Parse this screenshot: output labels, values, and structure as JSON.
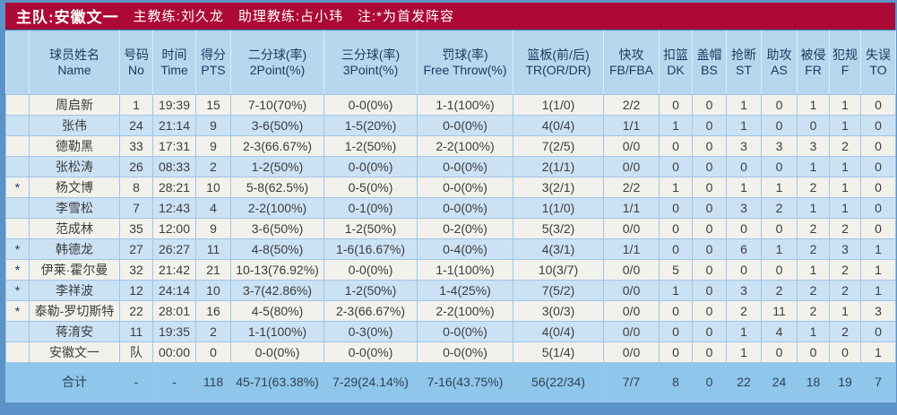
{
  "top_bar": {
    "team_label": "主队:安徽文一",
    "coach_label": "主教练:刘久龙",
    "assistant_label": "助理教练:占小玮",
    "note_label": "注:*为首发阵容"
  },
  "colors": {
    "top_bar_bg": "#ac0936",
    "header_bg": "#b7d7ee",
    "header_text": "#1c3c61",
    "row_light_bg": "#f3f1ec",
    "row_blue_bg": "#cbe2f5",
    "total_row_bg": "#8ec6ec",
    "outer_frame_bg": "#5b93c8",
    "data_text": "#3d3d3d"
  },
  "table": {
    "columns": [
      {
        "key": "star",
        "zh": "",
        "en": ""
      },
      {
        "key": "name",
        "zh": "球员姓名",
        "en": "Name"
      },
      {
        "key": "no",
        "zh": "号码",
        "en": "No"
      },
      {
        "key": "time",
        "zh": "时间",
        "en": "Time"
      },
      {
        "key": "pts",
        "zh": "得分",
        "en": "PTS"
      },
      {
        "key": "p2",
        "zh": "二分球(率)",
        "en": "2Point(%)"
      },
      {
        "key": "p3",
        "zh": "三分球(率)",
        "en": "3Point(%)"
      },
      {
        "key": "ft",
        "zh": "罚球(率)",
        "en": "Free Throw(%)"
      },
      {
        "key": "tr",
        "zh": "篮板(前/后)",
        "en": "TR(OR/DR)"
      },
      {
        "key": "fb",
        "zh": "快攻",
        "en": "FB/FBA"
      },
      {
        "key": "dk",
        "zh": "扣篮",
        "en": "DK"
      },
      {
        "key": "bs",
        "zh": "盖帽",
        "en": "BS"
      },
      {
        "key": "st",
        "zh": "抢断",
        "en": "ST"
      },
      {
        "key": "as",
        "zh": "助攻",
        "en": "AS"
      },
      {
        "key": "fr",
        "zh": "被侵",
        "en": "FR"
      },
      {
        "key": "f",
        "zh": "犯规",
        "en": "F"
      },
      {
        "key": "to",
        "zh": "失误",
        "en": "TO"
      }
    ],
    "rows": [
      {
        "star": "",
        "name": "周启新",
        "no": "1",
        "time": "19:39",
        "pts": "15",
        "p2": "7-10(70%)",
        "p3": "0-0(0%)",
        "ft": "1-1(100%)",
        "tr": "1(1/0)",
        "fb": "2/2",
        "dk": "0",
        "bs": "0",
        "st": "1",
        "as": "0",
        "fr": "1",
        "f": "1",
        "to": "0"
      },
      {
        "star": "",
        "name": "张伟",
        "no": "24",
        "time": "21:14",
        "pts": "9",
        "p2": "3-6(50%)",
        "p3": "1-5(20%)",
        "ft": "0-0(0%)",
        "tr": "4(0/4)",
        "fb": "1/1",
        "dk": "1",
        "bs": "0",
        "st": "1",
        "as": "0",
        "fr": "0",
        "f": "1",
        "to": "0"
      },
      {
        "star": "",
        "name": "德勒黑",
        "no": "33",
        "time": "17:31",
        "pts": "9",
        "p2": "2-3(66.67%)",
        "p3": "1-2(50%)",
        "ft": "2-2(100%)",
        "tr": "7(2/5)",
        "fb": "0/0",
        "dk": "0",
        "bs": "0",
        "st": "3",
        "as": "3",
        "fr": "3",
        "f": "2",
        "to": "0"
      },
      {
        "star": "",
        "name": "张松涛",
        "no": "26",
        "time": "08:33",
        "pts": "2",
        "p2": "1-2(50%)",
        "p3": "0-0(0%)",
        "ft": "0-0(0%)",
        "tr": "2(1/1)",
        "fb": "0/0",
        "dk": "0",
        "bs": "0",
        "st": "0",
        "as": "0",
        "fr": "1",
        "f": "1",
        "to": "0"
      },
      {
        "star": "*",
        "name": "杨文博",
        "no": "8",
        "time": "28:21",
        "pts": "10",
        "p2": "5-8(62.5%)",
        "p3": "0-5(0%)",
        "ft": "0-0(0%)",
        "tr": "3(2/1)",
        "fb": "2/2",
        "dk": "1",
        "bs": "0",
        "st": "1",
        "as": "1",
        "fr": "2",
        "f": "1",
        "to": "0"
      },
      {
        "star": "",
        "name": "李雪松",
        "no": "7",
        "time": "12:43",
        "pts": "4",
        "p2": "2-2(100%)",
        "p3": "0-1(0%)",
        "ft": "0-0(0%)",
        "tr": "1(1/0)",
        "fb": "1/1",
        "dk": "0",
        "bs": "0",
        "st": "3",
        "as": "2",
        "fr": "1",
        "f": "1",
        "to": "0"
      },
      {
        "star": "",
        "name": "范成林",
        "no": "35",
        "time": "12:00",
        "pts": "9",
        "p2": "3-6(50%)",
        "p3": "1-2(50%)",
        "ft": "0-2(0%)",
        "tr": "5(3/2)",
        "fb": "0/0",
        "dk": "0",
        "bs": "0",
        "st": "0",
        "as": "0",
        "fr": "2",
        "f": "2",
        "to": "0"
      },
      {
        "star": "*",
        "name": "韩德龙",
        "no": "27",
        "time": "26:27",
        "pts": "11",
        "p2": "4-8(50%)",
        "p3": "1-6(16.67%)",
        "ft": "0-4(0%)",
        "tr": "4(3/1)",
        "fb": "1/1",
        "dk": "0",
        "bs": "0",
        "st": "6",
        "as": "1",
        "fr": "2",
        "f": "3",
        "to": "1"
      },
      {
        "star": "*",
        "name": "伊莱·霍尔曼",
        "no": "32",
        "time": "21:42",
        "pts": "21",
        "p2": "10-13(76.92%)",
        "p3": "0-0(0%)",
        "ft": "1-1(100%)",
        "tr": "10(3/7)",
        "fb": "0/0",
        "dk": "5",
        "bs": "0",
        "st": "0",
        "as": "0",
        "fr": "1",
        "f": "2",
        "to": "1"
      },
      {
        "star": "*",
        "name": "李祥波",
        "no": "12",
        "time": "24:14",
        "pts": "10",
        "p2": "3-7(42.86%)",
        "p3": "1-2(50%)",
        "ft": "1-4(25%)",
        "tr": "7(5/2)",
        "fb": "0/0",
        "dk": "1",
        "bs": "0",
        "st": "3",
        "as": "2",
        "fr": "2",
        "f": "2",
        "to": "1"
      },
      {
        "star": "*",
        "name": "泰勒-罗切斯特",
        "no": "22",
        "time": "28:01",
        "pts": "16",
        "p2": "4-5(80%)",
        "p3": "2-3(66.67%)",
        "ft": "2-2(100%)",
        "tr": "3(0/3)",
        "fb": "0/0",
        "dk": "0",
        "bs": "0",
        "st": "2",
        "as": "11",
        "fr": "2",
        "f": "1",
        "to": "3"
      },
      {
        "star": "",
        "name": "蒋淯安",
        "no": "11",
        "time": "19:35",
        "pts": "2",
        "p2": "1-1(100%)",
        "p3": "0-3(0%)",
        "ft": "0-0(0%)",
        "tr": "4(0/4)",
        "fb": "0/0",
        "dk": "0",
        "bs": "0",
        "st": "1",
        "as": "4",
        "fr": "1",
        "f": "2",
        "to": "0"
      },
      {
        "star": "",
        "name": "安徽文一",
        "no": "队",
        "time": "00:00",
        "pts": "0",
        "p2": "0-0(0%)",
        "p3": "0-0(0%)",
        "ft": "0-0(0%)",
        "tr": "5(1/4)",
        "fb": "0/0",
        "dk": "0",
        "bs": "0",
        "st": "1",
        "as": "0",
        "fr": "0",
        "f": "0",
        "to": "1"
      }
    ],
    "total_row": {
      "star": "",
      "name": "合计",
      "no": "-",
      "time": "-",
      "pts": "118",
      "p2": "45-71(63.38%)",
      "p3": "7-29(24.14%)",
      "ft": "7-16(43.75%)",
      "tr": "56(22/34)",
      "fb": "7/7",
      "dk": "8",
      "bs": "0",
      "st": "22",
      "as": "24",
      "fr": "18",
      "f": "19",
      "to": "7"
    }
  }
}
